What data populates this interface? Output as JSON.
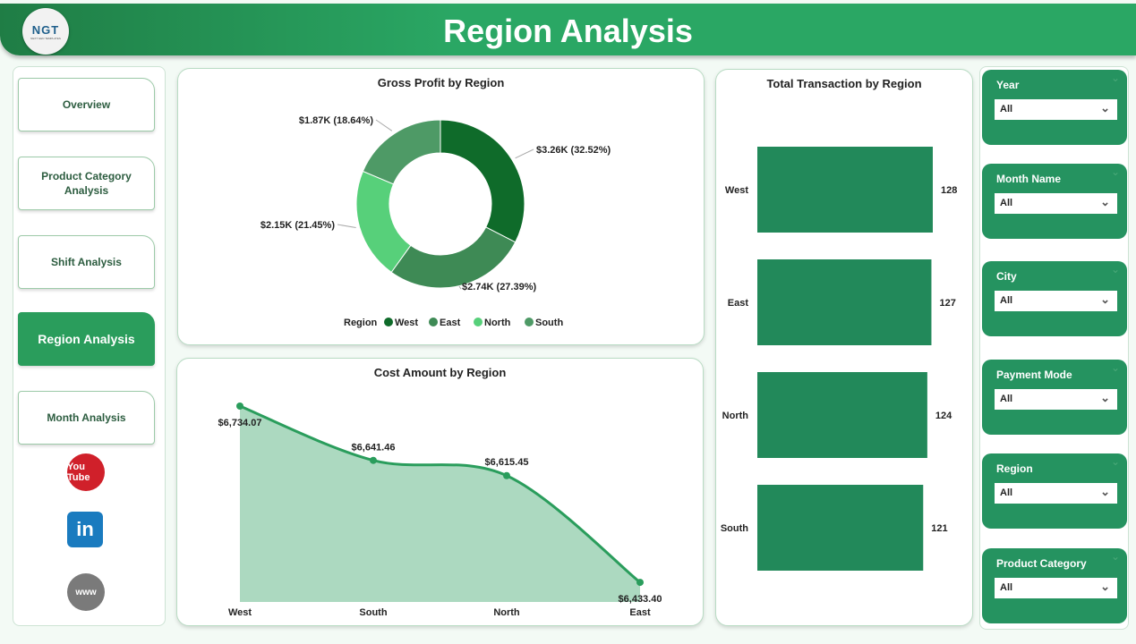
{
  "header": {
    "title": "Region Analysis",
    "logo_text": "NGT",
    "logo_sub": "NEXT GEN TEMPLATES"
  },
  "nav": {
    "items": [
      {
        "label": "Overview"
      },
      {
        "label": "Product Category Analysis"
      },
      {
        "label": "Shift Analysis"
      },
      {
        "label": "Region Analysis",
        "active": true
      },
      {
        "label": "Month Analysis"
      }
    ],
    "social": [
      {
        "icon": "youtube-icon",
        "label": "You Tube"
      },
      {
        "icon": "linkedin-icon",
        "label": "in"
      },
      {
        "icon": "globe-icon",
        "label": "www"
      }
    ]
  },
  "chart_data": [
    {
      "type": "pie",
      "title": "Gross Profit by Region",
      "legend_title": "Region",
      "legend_position": "bottom",
      "categories": [
        "West",
        "East",
        "North",
        "South"
      ],
      "values": [
        3260,
        2740,
        2150,
        1870
      ],
      "percents": [
        32.52,
        27.39,
        21.45,
        18.64
      ],
      "labels": [
        "$3.26K (32.52%)",
        "$2.74K (27.39%)",
        "$2.15K (21.45%)",
        "$1.87K (18.64%)"
      ],
      "colors": [
        "#0f6b2a",
        "#3e8a55",
        "#57d07a",
        "#4e9a66"
      ]
    },
    {
      "type": "area",
      "title": "Cost Amount by Region",
      "categories": [
        "West",
        "South",
        "North",
        "East"
      ],
      "values": [
        6734.07,
        6641.46,
        6615.45,
        6433.4
      ],
      "labels": [
        "$6,734.07",
        "$6,641.46",
        "$6,615.45",
        "$6,433.40"
      ],
      "color": "#2a9d5c",
      "fill": "#acd9c0"
    },
    {
      "type": "bar",
      "orientation": "horizontal",
      "title": "Total Transaction by Region",
      "categories": [
        "West",
        "East",
        "North",
        "South"
      ],
      "values": [
        128,
        127,
        124,
        121
      ],
      "color": "#22895a"
    }
  ],
  "slicers": [
    {
      "label": "Year",
      "value": "All"
    },
    {
      "label": "Month Name",
      "value": "All"
    },
    {
      "label": "City",
      "value": "All"
    },
    {
      "label": "Payment Mode",
      "value": "All"
    },
    {
      "label": "Region",
      "value": "All"
    },
    {
      "label": "Product Category",
      "value": "All"
    }
  ]
}
